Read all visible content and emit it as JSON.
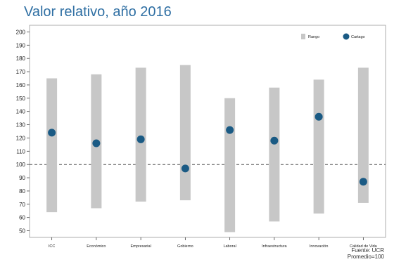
{
  "chart_data": {
    "type": "range-dot",
    "title": "Valor relativo, año 2016",
    "categories": [
      "ICC",
      "Económico",
      "Empresarial",
      "Gobierno",
      "Laboral",
      "Infraestructura",
      "Innovación",
      "Calidad de Vida"
    ],
    "series": [
      {
        "name": "Rango",
        "type": "range-bar",
        "low": [
          64,
          67,
          72,
          73,
          49,
          57,
          63,
          71
        ],
        "high": [
          165,
          168,
          173,
          175,
          150,
          158,
          164,
          173
        ]
      },
      {
        "name": "Cartago",
        "type": "scatter",
        "values": [
          124,
          116,
          119,
          97,
          126,
          118,
          136,
          87
        ]
      }
    ],
    "reference_line": {
      "value": 100,
      "style": "dashed"
    },
    "y_ticks": [
      50,
      60,
      70,
      80,
      90,
      100,
      110,
      120,
      130,
      140,
      150,
      160,
      170,
      180,
      190,
      200
    ],
    "ylim": [
      45,
      205
    ],
    "grid": false,
    "legend_position": "top-right",
    "colors": {
      "range": "#c7c7c7",
      "point": "#1a5a84",
      "title": "#2f6fa3",
      "reference": "#555555"
    },
    "source_lines": [
      "Fuente: UCR",
      "Promedio=100"
    ]
  }
}
